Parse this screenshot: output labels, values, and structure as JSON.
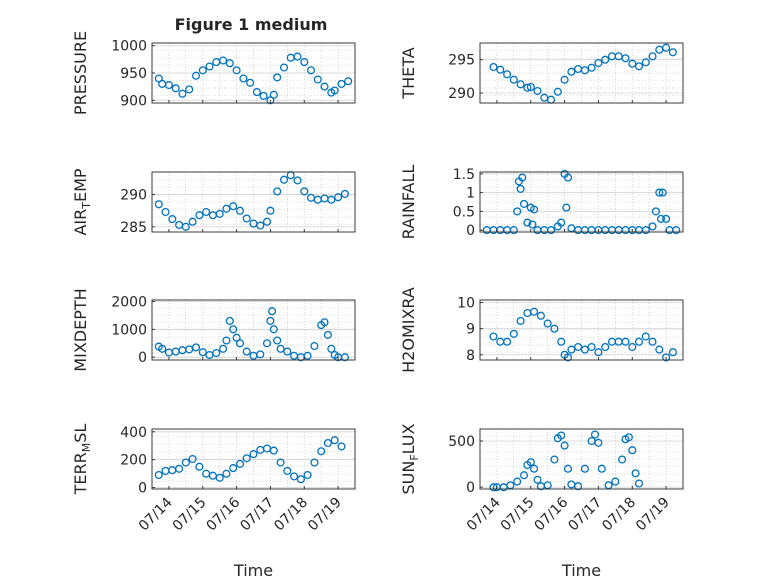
{
  "figure_title": "Figure 1 medium",
  "colors": {
    "marker": "#0072BD",
    "axis": "#262626",
    "grid": "#bdbdbd",
    "background": "#ffffff"
  },
  "chart_data": [
    {
      "type": "scatter",
      "id": "pressure",
      "ylabel": "PRESSURE",
      "ylim": [
        895,
        1005
      ],
      "yticks": [
        900,
        950,
        1000
      ],
      "yticklabels": [
        "900",
        "950",
        "1000"
      ],
      "x_tick_labels_shown": false,
      "points": [
        [
          0.7,
          940
        ],
        [
          0.8,
          930
        ],
        [
          1.0,
          928
        ],
        [
          1.2,
          922
        ],
        [
          1.4,
          912
        ],
        [
          1.6,
          920
        ],
        [
          1.8,
          945
        ],
        [
          2.0,
          955
        ],
        [
          2.2,
          962
        ],
        [
          2.4,
          970
        ],
        [
          2.6,
          973
        ],
        [
          2.8,
          968
        ],
        [
          3.0,
          955
        ],
        [
          3.2,
          940
        ],
        [
          3.4,
          932
        ],
        [
          3.6,
          915
        ],
        [
          3.8,
          908
        ],
        [
          4.0,
          900
        ],
        [
          4.1,
          910
        ],
        [
          4.2,
          942
        ],
        [
          4.4,
          960
        ],
        [
          4.6,
          978
        ],
        [
          4.8,
          980
        ],
        [
          5.0,
          970
        ],
        [
          5.2,
          955
        ],
        [
          5.4,
          938
        ],
        [
          5.6,
          925
        ],
        [
          5.8,
          914
        ],
        [
          5.9,
          918
        ],
        [
          6.1,
          930
        ],
        [
          6.3,
          935
        ]
      ]
    },
    {
      "type": "scatter",
      "id": "theta",
      "ylabel": "THETA",
      "ylim": [
        288.5,
        297.5
      ],
      "yticks": [
        290,
        295
      ],
      "yticklabels": [
        "290",
        "295"
      ],
      "x_tick_labels_shown": false,
      "points": [
        [
          0.9,
          293.9
        ],
        [
          1.1,
          293.5
        ],
        [
          1.3,
          292.8
        ],
        [
          1.5,
          292.0
        ],
        [
          1.7,
          291.3
        ],
        [
          1.9,
          290.8
        ],
        [
          2.0,
          290.9
        ],
        [
          2.2,
          290.3
        ],
        [
          2.4,
          289.3
        ],
        [
          2.6,
          289.0
        ],
        [
          2.8,
          290.2
        ],
        [
          3.0,
          292.0
        ],
        [
          3.2,
          293.2
        ],
        [
          3.4,
          293.6
        ],
        [
          3.6,
          293.4
        ],
        [
          3.8,
          293.8
        ],
        [
          4.0,
          294.5
        ],
        [
          4.2,
          295.0
        ],
        [
          4.4,
          295.5
        ],
        [
          4.6,
          295.5
        ],
        [
          4.8,
          295.2
        ],
        [
          5.0,
          294.4
        ],
        [
          5.2,
          294.0
        ],
        [
          5.4,
          294.6
        ],
        [
          5.6,
          295.5
        ],
        [
          5.8,
          296.5
        ],
        [
          6.0,
          296.8
        ],
        [
          6.2,
          296.1
        ]
      ]
    },
    {
      "type": "scatter",
      "id": "air_temp",
      "ylabel": "AIR",
      "ylabel_sub": "T",
      "ylabel_rest": "EMP",
      "ylim": [
        284.2,
        293.5
      ],
      "yticks": [
        285,
        290
      ],
      "yticklabels": [
        "285",
        "290"
      ],
      "x_tick_labels_shown": false,
      "points": [
        [
          0.7,
          288.5
        ],
        [
          0.9,
          287.3
        ],
        [
          1.1,
          286.2
        ],
        [
          1.3,
          285.3
        ],
        [
          1.5,
          285.0
        ],
        [
          1.7,
          285.8
        ],
        [
          1.9,
          286.8
        ],
        [
          2.1,
          287.3
        ],
        [
          2.3,
          286.8
        ],
        [
          2.5,
          287.0
        ],
        [
          2.7,
          287.8
        ],
        [
          2.9,
          288.2
        ],
        [
          3.1,
          287.5
        ],
        [
          3.3,
          286.3
        ],
        [
          3.5,
          285.5
        ],
        [
          3.7,
          285.2
        ],
        [
          3.9,
          285.8
        ],
        [
          4.0,
          287.5
        ],
        [
          4.2,
          290.5
        ],
        [
          4.4,
          292.3
        ],
        [
          4.6,
          293.0
        ],
        [
          4.8,
          292.2
        ],
        [
          5.0,
          290.5
        ],
        [
          5.2,
          289.5
        ],
        [
          5.4,
          289.2
        ],
        [
          5.6,
          289.4
        ],
        [
          5.8,
          289.2
        ],
        [
          6.0,
          289.6
        ],
        [
          6.2,
          290.1
        ]
      ]
    },
    {
      "type": "scatter",
      "id": "rainfall",
      "ylabel": "RAINFALL",
      "ylim": [
        -0.05,
        1.55
      ],
      "yticks": [
        0,
        0.5,
        1,
        1.5
      ],
      "yticklabels": [
        "0",
        "0.5",
        "1",
        "1.5"
      ],
      "x_tick_labels_shown": false,
      "points": [
        [
          0.7,
          0
        ],
        [
          0.9,
          0
        ],
        [
          1.1,
          0
        ],
        [
          1.3,
          0
        ],
        [
          1.5,
          0
        ],
        [
          1.6,
          0.5
        ],
        [
          1.65,
          1.3
        ],
        [
          1.7,
          1.1
        ],
        [
          1.75,
          1.4
        ],
        [
          1.8,
          0.7
        ],
        [
          1.9,
          0.2
        ],
        [
          2.0,
          0.6
        ],
        [
          2.05,
          0.15
        ],
        [
          2.1,
          0.55
        ],
        [
          2.2,
          0
        ],
        [
          2.4,
          0
        ],
        [
          2.6,
          0
        ],
        [
          2.8,
          0.1
        ],
        [
          2.9,
          0.2
        ],
        [
          3.0,
          1.5
        ],
        [
          3.05,
          0.6
        ],
        [
          3.1,
          1.4
        ],
        [
          3.2,
          0.05
        ],
        [
          3.4,
          0
        ],
        [
          3.6,
          0
        ],
        [
          3.8,
          0
        ],
        [
          4.0,
          0
        ],
        [
          4.2,
          0
        ],
        [
          4.4,
          0
        ],
        [
          4.6,
          0
        ],
        [
          4.8,
          0
        ],
        [
          5.0,
          0
        ],
        [
          5.2,
          0
        ],
        [
          5.4,
          0
        ],
        [
          5.6,
          0.1
        ],
        [
          5.7,
          0.5
        ],
        [
          5.8,
          1.0
        ],
        [
          5.85,
          0.3
        ],
        [
          5.9,
          1.0
        ],
        [
          6.0,
          0.3
        ],
        [
          6.1,
          0
        ],
        [
          6.3,
          0
        ]
      ]
    },
    {
      "type": "scatter",
      "id": "mixdepth",
      "ylabel": "MIXDEPTH",
      "ylim": [
        -100,
        2050
      ],
      "yticks": [
        0,
        1000,
        2000
      ],
      "yticklabels": [
        "0",
        "1000",
        "2000"
      ],
      "x_tick_labels_shown": false,
      "points": [
        [
          0.7,
          380
        ],
        [
          0.8,
          300
        ],
        [
          1.0,
          170
        ],
        [
          1.2,
          200
        ],
        [
          1.4,
          250
        ],
        [
          1.6,
          280
        ],
        [
          1.8,
          350
        ],
        [
          2.0,
          180
        ],
        [
          2.2,
          80
        ],
        [
          2.4,
          150
        ],
        [
          2.6,
          300
        ],
        [
          2.7,
          600
        ],
        [
          2.8,
          1300
        ],
        [
          2.9,
          1000
        ],
        [
          3.0,
          700
        ],
        [
          3.1,
          500
        ],
        [
          3.3,
          200
        ],
        [
          3.5,
          50
        ],
        [
          3.7,
          100
        ],
        [
          3.9,
          500
        ],
        [
          4.0,
          1300
        ],
        [
          4.05,
          1650
        ],
        [
          4.1,
          1000
        ],
        [
          4.2,
          600
        ],
        [
          4.3,
          300
        ],
        [
          4.5,
          200
        ],
        [
          4.7,
          50
        ],
        [
          4.9,
          0
        ],
        [
          5.1,
          50
        ],
        [
          5.3,
          400
        ],
        [
          5.5,
          1150
        ],
        [
          5.6,
          1250
        ],
        [
          5.7,
          800
        ],
        [
          5.8,
          300
        ],
        [
          5.9,
          80
        ],
        [
          6.0,
          0
        ],
        [
          6.2,
          0
        ]
      ]
    },
    {
      "type": "scatter",
      "id": "h2omixra",
      "ylabel": "H2OMIXRA",
      "ylim": [
        7.8,
        10.1
      ],
      "yticks": [
        8,
        9,
        10
      ],
      "yticklabels": [
        "8",
        "9",
        "10"
      ],
      "x_tick_labels_shown": false,
      "points": [
        [
          0.9,
          8.7
        ],
        [
          1.1,
          8.5
        ],
        [
          1.3,
          8.5
        ],
        [
          1.5,
          8.8
        ],
        [
          1.7,
          9.3
        ],
        [
          1.9,
          9.6
        ],
        [
          2.1,
          9.65
        ],
        [
          2.3,
          9.5
        ],
        [
          2.5,
          9.2
        ],
        [
          2.7,
          9.0
        ],
        [
          2.9,
          8.5
        ],
        [
          3.0,
          8.0
        ],
        [
          3.1,
          7.9
        ],
        [
          3.2,
          8.2
        ],
        [
          3.4,
          8.3
        ],
        [
          3.6,
          8.2
        ],
        [
          3.8,
          8.3
        ],
        [
          4.0,
          8.1
        ],
        [
          4.2,
          8.3
        ],
        [
          4.4,
          8.5
        ],
        [
          4.6,
          8.5
        ],
        [
          4.8,
          8.5
        ],
        [
          5.0,
          8.3
        ],
        [
          5.2,
          8.5
        ],
        [
          5.4,
          8.7
        ],
        [
          5.6,
          8.5
        ],
        [
          5.8,
          8.2
        ],
        [
          6.0,
          7.9
        ],
        [
          6.2,
          8.1
        ]
      ]
    },
    {
      "type": "scatter",
      "id": "terr_msl",
      "ylabel": "TERR",
      "ylabel_sub": "M",
      "ylabel_rest": "SL",
      "ylim": [
        -10,
        420
      ],
      "yticks": [
        0,
        200,
        400
      ],
      "yticklabels": [
        "0",
        "200",
        "400"
      ],
      "xticks": [
        0,
        1,
        2,
        3,
        4,
        5
      ],
      "xticklabels": [
        "07/14",
        "07/15",
        "07/16",
        "07/17",
        "07/18",
        "07/19"
      ],
      "xlabel": "Time",
      "points": [
        [
          0.7,
          90
        ],
        [
          0.9,
          120
        ],
        [
          1.1,
          125
        ],
        [
          1.3,
          135
        ],
        [
          1.5,
          180
        ],
        [
          1.7,
          205
        ],
        [
          1.9,
          150
        ],
        [
          2.1,
          100
        ],
        [
          2.3,
          85
        ],
        [
          2.5,
          70
        ],
        [
          2.7,
          100
        ],
        [
          2.9,
          140
        ],
        [
          3.1,
          170
        ],
        [
          3.3,
          210
        ],
        [
          3.5,
          240
        ],
        [
          3.7,
          270
        ],
        [
          3.9,
          280
        ],
        [
          4.1,
          265
        ],
        [
          4.3,
          180
        ],
        [
          4.5,
          120
        ],
        [
          4.7,
          80
        ],
        [
          4.9,
          60
        ],
        [
          5.1,
          90
        ],
        [
          5.3,
          180
        ],
        [
          5.5,
          260
        ],
        [
          5.7,
          320
        ],
        [
          5.9,
          340
        ],
        [
          6.1,
          295
        ]
      ]
    },
    {
      "type": "scatter",
      "id": "sun_flux",
      "ylabel": "SUN",
      "ylabel_sub": "F",
      "ylabel_rest": "LUX",
      "ylim": [
        -20,
        630
      ],
      "yticks": [
        0,
        500
      ],
      "yticklabels": [
        "0",
        "500"
      ],
      "xticks": [
        0,
        1,
        2,
        3,
        4,
        5
      ],
      "xticklabels": [
        "07/14",
        "07/15",
        "07/16",
        "07/17",
        "07/18",
        "07/19"
      ],
      "xlabel": "Time",
      "points": [
        [
          0.9,
          0
        ],
        [
          1.0,
          0
        ],
        [
          1.2,
          0
        ],
        [
          1.4,
          20
        ],
        [
          1.6,
          60
        ],
        [
          1.8,
          130
        ],
        [
          1.9,
          240
        ],
        [
          2.0,
          270
        ],
        [
          2.1,
          200
        ],
        [
          2.2,
          80
        ],
        [
          2.3,
          10
        ],
        [
          2.5,
          20
        ],
        [
          2.7,
          300
        ],
        [
          2.8,
          530
        ],
        [
          2.9,
          560
        ],
        [
          3.0,
          450
        ],
        [
          3.1,
          200
        ],
        [
          3.2,
          30
        ],
        [
          3.4,
          10
        ],
        [
          3.6,
          200
        ],
        [
          3.8,
          500
        ],
        [
          3.9,
          570
        ],
        [
          4.0,
          480
        ],
        [
          4.1,
          200
        ],
        [
          4.3,
          20
        ],
        [
          4.5,
          60
        ],
        [
          4.7,
          300
        ],
        [
          4.8,
          520
        ],
        [
          4.9,
          540
        ],
        [
          5.0,
          400
        ],
        [
          5.1,
          150
        ],
        [
          5.2,
          40
        ]
      ]
    }
  ]
}
